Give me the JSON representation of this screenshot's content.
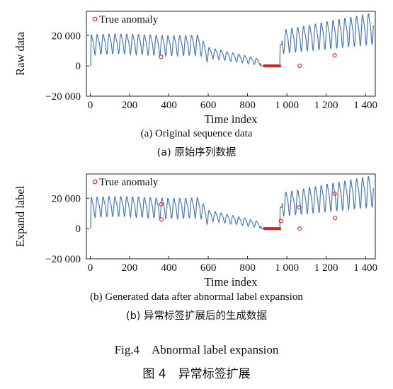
{
  "chart_data": [
    {
      "type": "line",
      "series": [
        {
          "name": "raw_data_series",
          "color": "#4a78b8"
        }
      ],
      "anomaly_series": {
        "name": "True anomaly",
        "color": "#e02020"
      },
      "xlabel": "Time index",
      "ylabel": "Raw data",
      "xlim": [
        -20,
        1450
      ],
      "ylim": [
        -20000,
        36000
      ],
      "xticks": [
        0,
        200,
        400,
        600,
        800,
        1000,
        1200,
        1400
      ],
      "xtick_labels": [
        "0",
        "200",
        "400",
        "600",
        "800",
        "1 000",
        "1 200",
        "1 400"
      ],
      "yticks": [
        20000,
        0,
        -20000
      ],
      "ytick_labels": [
        "20 000",
        "0",
        "−20 000"
      ],
      "anomaly_points": [
        [
          360,
          6000
        ],
        [
          1065,
          0
        ],
        [
          1243,
          7000
        ]
      ],
      "anomaly_segment": [
        880,
        970,
        0
      ],
      "legend": "top-left",
      "grid": false,
      "caption_en": "(a) Original sequence data",
      "caption_cn": "(a) 原始序列数据"
    },
    {
      "type": "line",
      "series": [
        {
          "name": "expanded_label_series",
          "color": "#4a78b8"
        }
      ],
      "anomaly_series": {
        "name": "True anomaly",
        "color": "#e02020"
      },
      "xlabel": "Time index",
      "ylabel": "Expand label",
      "xlim": [
        -20,
        1450
      ],
      "ylim": [
        -20000,
        36000
      ],
      "xticks": [
        0,
        200,
        400,
        600,
        800,
        1000,
        1200,
        1400
      ],
      "xtick_labels": [
        "0",
        "200",
        "400",
        "600",
        "800",
        "1 000",
        "1 200",
        "1 400"
      ],
      "yticks": [
        20000,
        0,
        -20000
      ],
      "ytick_labels": [
        "20 000",
        "0",
        "−20 000"
      ],
      "anomaly_points": [
        [
          360,
          16000
        ],
        [
          362,
          6000
        ],
        [
          970,
          5000
        ],
        [
          1063,
          14000
        ],
        [
          1065,
          0
        ],
        [
          1243,
          23000
        ],
        [
          1245,
          7000
        ]
      ],
      "anomaly_segment": [
        880,
        970,
        0
      ],
      "legend": "top-left",
      "grid": false,
      "caption_en": "(b) Generated data after abnormal label expansion",
      "caption_cn": "(b) 异常标签扩展后的生成数据"
    }
  ],
  "figure": {
    "caption_en": "Fig.4 Abnormal label expansion",
    "caption_cn": "图 4 异常标签扩展"
  }
}
